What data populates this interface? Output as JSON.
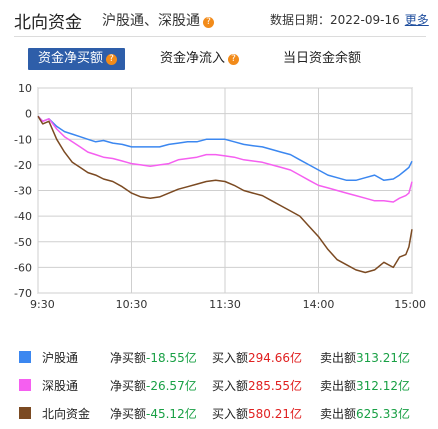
{
  "header": {
    "title": "北向资金",
    "subtitle": "沪股通、深股通",
    "date_label": "数据日期：",
    "date_value": "2022-09-16",
    "more_link": "更多",
    "help_icon": "question-circle-icon"
  },
  "tabs": [
    {
      "label": "资金净买额",
      "active": true,
      "icon": "question-circle-icon"
    },
    {
      "label": "资金净流入",
      "active": false,
      "icon": "question-circle-icon"
    },
    {
      "label": "当日资金余额",
      "active": false
    }
  ],
  "colors": {
    "sh": "#3b87f0",
    "sz": "#f55ff0",
    "north": "#7b4a22",
    "tab_active": "#2e5ea9",
    "negative": "#19a045",
    "positive": "#e02020"
  },
  "chart_data": {
    "type": "line",
    "x_ticks": [
      "9:30",
      "10:30",
      "11:30",
      "14:00",
      "15:00"
    ],
    "y_ticks": [
      10,
      0,
      -10,
      -20,
      -30,
      -40,
      -50,
      -60,
      -70
    ],
    "ylim": [
      -70,
      10
    ],
    "grid": true,
    "x": [
      0,
      3,
      7,
      12,
      17,
      22,
      27,
      32,
      37,
      42,
      48,
      54,
      60,
      66,
      72,
      78,
      84,
      90,
      96,
      102,
      108,
      114,
      120,
      126,
      132,
      138,
      144,
      150,
      156,
      162,
      168,
      174,
      180,
      186,
      192,
      198,
      204,
      210,
      216,
      222,
      228,
      232,
      236,
      238,
      240
    ],
    "series": [
      {
        "name": "沪股通",
        "color": "#3b87f0",
        "values": [
          -1,
          -3,
          -2,
          -5,
          -7,
          -8,
          -9,
          -10,
          -11,
          -10.5,
          -11.5,
          -12,
          -13,
          -13,
          -13,
          -13,
          -12,
          -11.5,
          -11,
          -11,
          -10,
          -10,
          -10,
          -11,
          -12,
          -12.5,
          -13,
          -14,
          -15,
          -16,
          -18,
          -20,
          -22,
          -24,
          -25,
          -26,
          -26,
          -25,
          -24,
          -26,
          -25.5,
          -24,
          -22,
          -21,
          -18.55
        ]
      },
      {
        "name": "深股通",
        "color": "#f55ff0",
        "values": [
          -1,
          -3,
          -2,
          -6,
          -9,
          -11,
          -13,
          -15,
          -16,
          -17,
          -17.5,
          -18.5,
          -19.5,
          -20,
          -20.5,
          -20,
          -19.5,
          -18,
          -17.5,
          -17,
          -16,
          -16,
          -16.5,
          -17,
          -18,
          -18.5,
          -19,
          -20,
          -21,
          -22,
          -24,
          -26,
          -28,
          -29,
          -30,
          -31,
          -32,
          -33,
          -34,
          -34,
          -34.5,
          -33,
          -32,
          -31,
          -26.57
        ]
      },
      {
        "name": "北向资金",
        "color": "#7b4a22",
        "values": [
          -1,
          -4,
          -3,
          -10,
          -15,
          -19,
          -21,
          -23,
          -24,
          -25.5,
          -26.5,
          -28.5,
          -31,
          -32.5,
          -33,
          -32.5,
          -31,
          -29.5,
          -28.5,
          -27.5,
          -26.5,
          -26,
          -26.5,
          -28,
          -30,
          -31,
          -32,
          -34,
          -36,
          -38,
          -40,
          -44,
          -48,
          -53,
          -57,
          -59,
          -61,
          -62,
          -61,
          -58,
          -60,
          -56,
          -55,
          -52,
          -45.12
        ]
      }
    ]
  },
  "legend": [
    {
      "name": "沪股通",
      "net_label": "净买额",
      "net_value": "-18.55亿",
      "buy_label": "买入额",
      "buy_value": "294.66亿",
      "sell_label": "卖出额",
      "sell_value": "313.21亿"
    },
    {
      "name": "深股通",
      "net_label": "净买额",
      "net_value": "-26.57亿",
      "buy_label": "买入额",
      "buy_value": "285.55亿",
      "sell_label": "卖出额",
      "sell_value": "312.12亿"
    },
    {
      "name": "北向资金",
      "net_label": "净买额",
      "net_value": "-45.12亿",
      "buy_label": "买入额",
      "buy_value": "580.21亿",
      "sell_label": "卖出额",
      "sell_value": "625.33亿"
    }
  ]
}
